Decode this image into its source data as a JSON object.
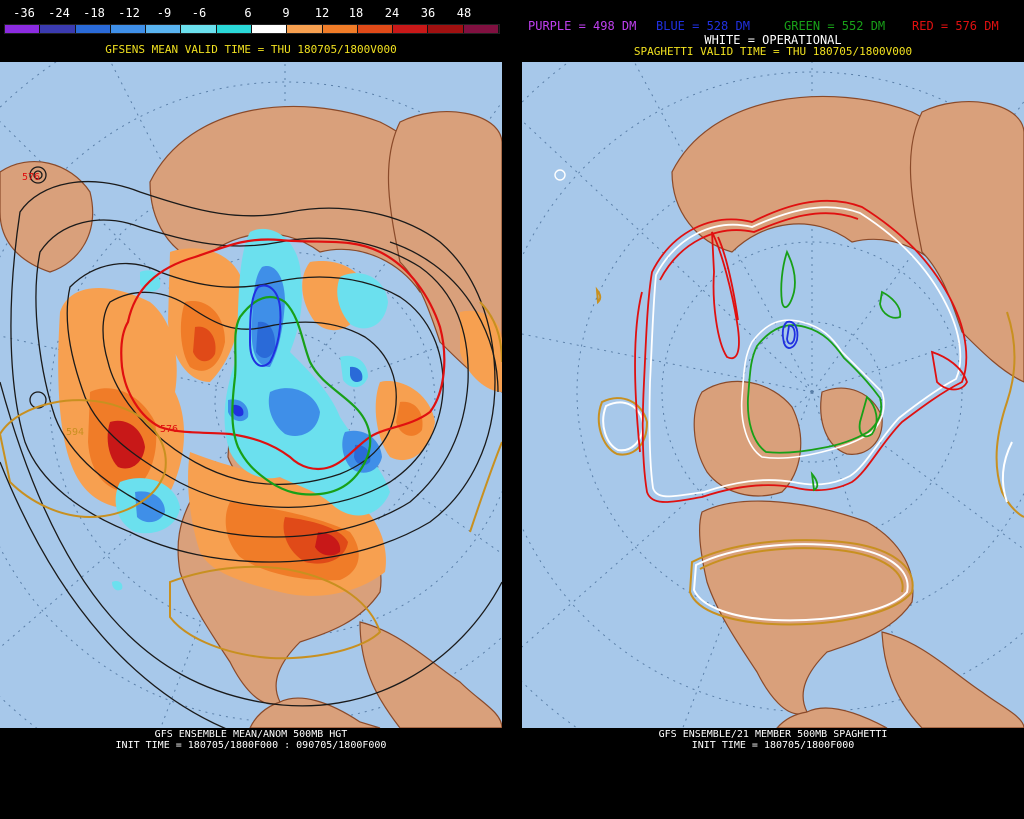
{
  "left": {
    "colorbar": {
      "labels": [
        "-36",
        "-24",
        "-18",
        "-12",
        "-9",
        "-6",
        "6",
        "9",
        "12",
        "18",
        "24",
        "36",
        "48"
      ],
      "colors": [
        "#8b2be0",
        "#3b3bb0",
        "#2a6ad8",
        "#3f8fe8",
        "#5ab4f0",
        "#6be0ee",
        "#2ad8d8",
        "#ffffff",
        "#f7a050",
        "#f07c28",
        "#e04a18",
        "#c81818",
        "#a01010",
        "#801040"
      ]
    },
    "title": "GFSENS MEAN VALID TIME = THU 180705/1800V000",
    "bottom_line1": "GFS ENSEMBLE MEAN/ANOM 500MB HGT",
    "bottom_line2": "INIT TIME = 180705/1800F000 : 090705/1800F000"
  },
  "right": {
    "legend": {
      "purple": "PURPLE = 498 DM",
      "blue": "BLUE = 528 DM",
      "green": "GREEN = 552 DM",
      "red": "RED = 576 DM",
      "white": "WHITE = OPERATIONAL"
    },
    "title": "SPAGHETTI VALID TIME = THU 180705/1800V000",
    "bottom_line1": "GFS ENSEMBLE/21 MEMBER 500MB SPAGHETTI",
    "bottom_line2": "INIT TIME = 180705/1800F000"
  },
  "colors": {
    "ocean": "#a7c8ea",
    "land": "#d9a07b",
    "coast": "#8a4a2a",
    "purple": "#c040f0",
    "blue": "#2030e0",
    "green": "#18a018",
    "red": "#e01010",
    "yellow_title": "#f0e020"
  },
  "contour_labels": [
    "576",
    "594",
    "576"
  ]
}
